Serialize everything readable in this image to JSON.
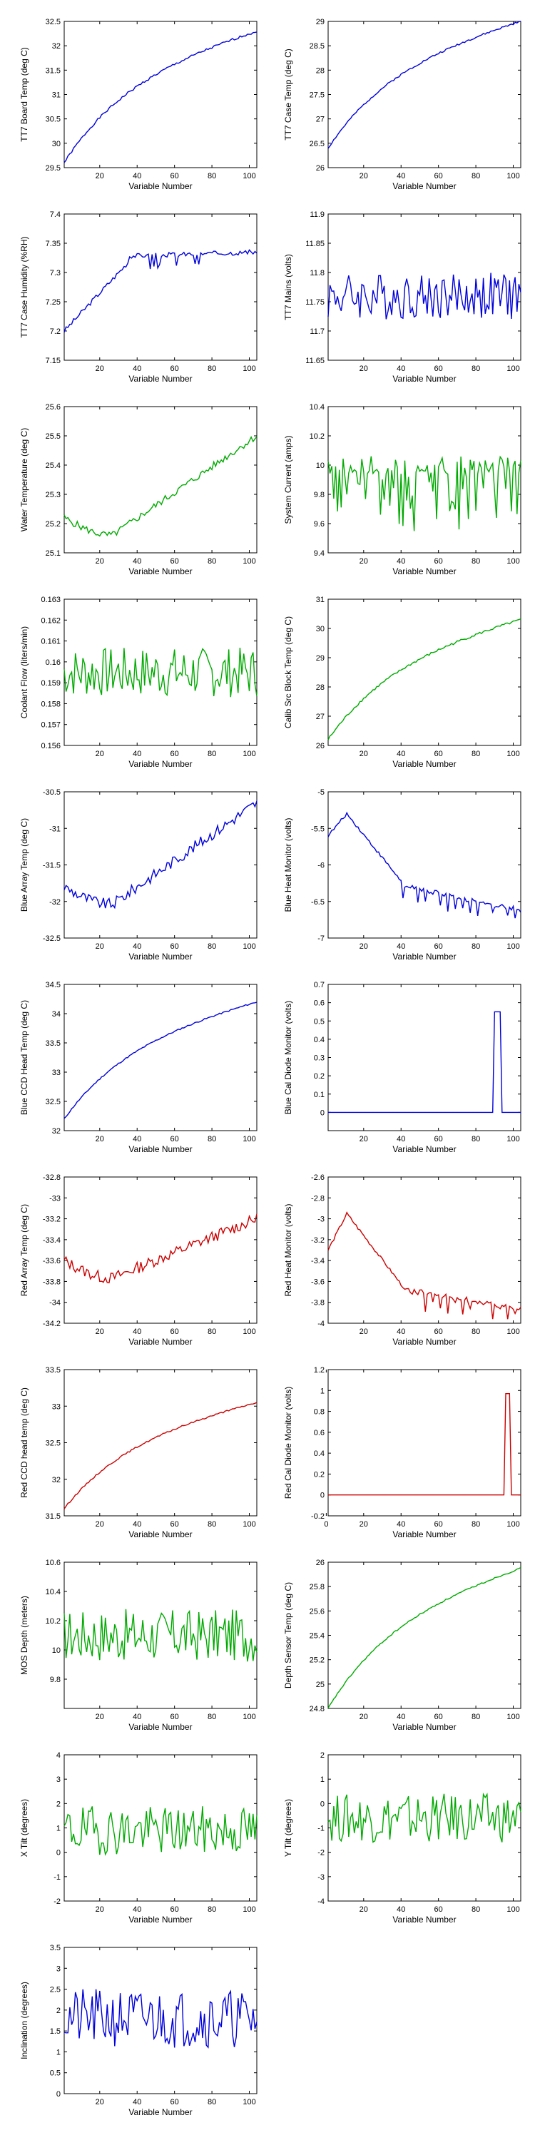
{
  "colors": {
    "blue": "#0000dd",
    "green": "#00aa00",
    "red": "#cc0000"
  },
  "chart_data": [
    {
      "type": "line",
      "id": "tt7-board-temp",
      "color": "#0000dd",
      "xlabel": "Variable Number",
      "ylabel": "TT7 Board Temp (deg C)",
      "xlim": [
        1,
        104
      ],
      "ylim": [
        29.5,
        32.5
      ],
      "xticks": [
        20,
        40,
        60,
        80,
        100
      ],
      "yticks": [
        29.5,
        30,
        30.5,
        31,
        31.5,
        32,
        32.5
      ],
      "shape": "rise",
      "params": [
        29.6,
        32.3,
        0.05,
        1
      ]
    },
    {
      "type": "line",
      "id": "tt7-case-temp",
      "color": "#0000dd",
      "xlabel": "Variable Number",
      "ylabel": "TT7 Case Temp (deg C)",
      "xlim": [
        1,
        104
      ],
      "ylim": [
        26,
        29
      ],
      "xticks": [
        20,
        40,
        60,
        80,
        100
      ],
      "yticks": [
        26,
        26.5,
        27,
        27.5,
        28,
        28.5,
        29
      ],
      "shape": "rise",
      "params": [
        26.4,
        29.0,
        0.04,
        2
      ]
    },
    {
      "type": "line",
      "id": "tt7-case-humidity",
      "color": "#0000dd",
      "xlabel": "Variable Number",
      "ylabel": "TT7 Case Humidity (%RH)",
      "xlim": [
        1,
        104
      ],
      "ylim": [
        7.15,
        7.4
      ],
      "xticks": [
        20,
        40,
        60,
        80,
        100
      ],
      "yticks": [
        7.15,
        7.2,
        7.25,
        7.3,
        7.35,
        7.4
      ],
      "shape": "step",
      "params": [
        7.2,
        7.33,
        0.01,
        3
      ]
    },
    {
      "type": "line",
      "id": "tt7-mains",
      "color": "#0000dd",
      "xlabel": "Variable Number",
      "ylabel": "TT7 Mains (volts)",
      "xlim": [
        1,
        104
      ],
      "ylim": [
        11.65,
        11.9
      ],
      "xticks": [
        20,
        40,
        60,
        80,
        100
      ],
      "yticks": [
        11.65,
        11.7,
        11.75,
        11.8,
        11.85,
        11.9
      ],
      "shape": "noise",
      "params": [
        11.76,
        0.04,
        4
      ]
    },
    {
      "type": "line",
      "id": "water-temperature",
      "color": "#00aa00",
      "xlabel": "Variable Number",
      "ylabel": "Water Temperature (deg C)",
      "xlim": [
        1,
        104
      ],
      "ylim": [
        25.1,
        25.6
      ],
      "xticks": [
        20,
        40,
        60,
        80,
        100
      ],
      "yticks": [
        25.1,
        25.2,
        25.3,
        25.4,
        25.5,
        25.6
      ],
      "shape": "dipRise",
      "params": [
        25.22,
        25.5,
        0.025,
        5
      ]
    },
    {
      "type": "line",
      "id": "system-current",
      "color": "#00aa00",
      "xlabel": "Variable Number",
      "ylabel": "System Current (amps)",
      "xlim": [
        1,
        104
      ],
      "ylim": [
        9.4,
        10.4
      ],
      "xticks": [
        20,
        40,
        60,
        80,
        100
      ],
      "yticks": [
        9.4,
        9.6,
        9.8,
        10,
        10.2,
        10.4
      ],
      "shape": "noiseDown",
      "params": [
        10.0,
        0.25,
        6
      ]
    },
    {
      "type": "line",
      "id": "coolant-flow",
      "color": "#00aa00",
      "xlabel": "Variable Number",
      "ylabel": "Coolant Flow (liters/min)",
      "xlim": [
        1,
        104
      ],
      "ylim": [
        0.156,
        0.163
      ],
      "xticks": [
        20,
        40,
        60,
        80,
        100
      ],
      "yticks": [
        0.156,
        0.157,
        0.158,
        0.159,
        0.16,
        0.161,
        0.162,
        0.163
      ],
      "shape": "noise",
      "params": [
        0.1595,
        0.0012,
        7
      ]
    },
    {
      "type": "line",
      "id": "calib-src-block-temp",
      "color": "#00aa00",
      "xlabel": "Variable Number",
      "ylabel": "Calib Src Block Temp (deg C)",
      "xlim": [
        1,
        104
      ],
      "ylim": [
        26,
        31
      ],
      "xticks": [
        20,
        40,
        60,
        80,
        100
      ],
      "yticks": [
        26,
        27,
        28,
        29,
        30,
        31
      ],
      "shape": "rise",
      "params": [
        26.2,
        30.3,
        0.05,
        8
      ]
    },
    {
      "type": "line",
      "id": "blue-array-temp",
      "color": "#0000dd",
      "xlabel": "Variable Number",
      "ylabel": "Blue Array Temp (deg C)",
      "xlim": [
        1,
        104
      ],
      "ylim": [
        -32.5,
        -30.5
      ],
      "xticks": [
        20,
        40,
        60,
        80,
        100
      ],
      "yticks": [
        -32.5,
        -32,
        -31.5,
        -31,
        -30.5
      ],
      "shape": "dipRise",
      "params": [
        -31.8,
        -30.65,
        0.04,
        9
      ]
    },
    {
      "type": "line",
      "id": "blue-heat-monitor",
      "color": "#0000dd",
      "xlabel": "Variable Number",
      "ylabel": "Blue Heat Monitor (volts)",
      "xlim": [
        1,
        104
      ],
      "ylim": [
        -7,
        -5
      ],
      "xticks": [
        20,
        40,
        60,
        80,
        100
      ],
      "yticks": [
        -7,
        -6.5,
        -6,
        -5.5,
        -5
      ],
      "shape": "heat",
      "params": [
        -5.6,
        -5.3,
        -6.25,
        -6.6,
        10
      ]
    },
    {
      "type": "line",
      "id": "blue-ccd-head-temp",
      "color": "#0000dd",
      "xlabel": "Variable Number",
      "ylabel": "Blue CCD Head Temp (deg C)",
      "xlim": [
        1,
        104
      ],
      "ylim": [
        32,
        34.5
      ],
      "xticks": [
        20,
        40,
        60,
        80,
        100
      ],
      "yticks": [
        32,
        32.5,
        33,
        33.5,
        34,
        34.5
      ],
      "shape": "rise",
      "params": [
        32.2,
        34.2,
        0.03,
        11
      ]
    },
    {
      "type": "line",
      "id": "blue-cal-diode-monitor",
      "color": "#0000dd",
      "xlabel": "Variable Number",
      "ylabel": "Blue Cal Diode Monitor (volts)",
      "xlim": [
        1,
        104
      ],
      "ylim": [
        -0.1,
        0.7
      ],
      "xticks": [
        20,
        40,
        60,
        80,
        100
      ],
      "yticks": [
        0,
        0.1,
        0.2,
        0.3,
        0.4,
        0.5,
        0.6,
        0.7
      ],
      "shape": "spike",
      "params": [
        0,
        0.55,
        90,
        93
      ]
    },
    {
      "type": "line",
      "id": "red-array-temp",
      "color": "#cc0000",
      "xlabel": "Variable Number",
      "ylabel": "Red Array Temp (deg C)",
      "xlim": [
        1,
        104
      ],
      "ylim": [
        -34.2,
        -32.8
      ],
      "xticks": [
        20,
        40,
        60,
        80,
        100
      ],
      "yticks": [
        -34.2,
        -34,
        -33.8,
        -33.6,
        -33.4,
        -33.2,
        -33,
        -32.8
      ],
      "shape": "dipRise",
      "params": [
        -33.6,
        -33.2,
        0.04,
        13
      ]
    },
    {
      "type": "line",
      "id": "red-heat-monitor",
      "color": "#cc0000",
      "xlabel": "Variable Number",
      "ylabel": "Red Heat Monitor (volts)",
      "xlim": [
        1,
        104
      ],
      "ylim": [
        -4,
        -2.6
      ],
      "xticks": [
        20,
        40,
        60,
        80,
        100
      ],
      "yticks": [
        -4,
        -3.8,
        -3.6,
        -3.4,
        -3.2,
        -3,
        -2.8,
        -2.6
      ],
      "shape": "heat",
      "params": [
        -3.3,
        -2.95,
        -3.65,
        -3.85,
        14
      ]
    },
    {
      "type": "line",
      "id": "red-ccd-head-temp",
      "color": "#cc0000",
      "xlabel": "Variable Number",
      "ylabel": "Red CCD head temp (deg C)",
      "xlim": [
        1,
        104
      ],
      "ylim": [
        31.5,
        33.5
      ],
      "xticks": [
        20,
        40,
        60,
        80,
        100
      ],
      "yticks": [
        31.5,
        32,
        32.5,
        33,
        33.5
      ],
      "shape": "rise",
      "params": [
        31.6,
        33.05,
        0.03,
        15
      ]
    },
    {
      "type": "line",
      "id": "red-cal-diode-monitor",
      "color": "#cc0000",
      "xlabel": "Variable Number",
      "ylabel": "Red Cal Diode Monitor (volts)",
      "xlim": [
        1,
        104
      ],
      "ylim": [
        -0.2,
        1.2
      ],
      "xticks": [
        0,
        20,
        40,
        60,
        80,
        100
      ],
      "yticks": [
        -0.2,
        0,
        0.2,
        0.4,
        0.6,
        0.8,
        1,
        1.2
      ],
      "shape": "spike",
      "params": [
        0,
        0.97,
        96,
        98
      ]
    },
    {
      "type": "line",
      "id": "mos-depth",
      "color": "#00aa00",
      "xlabel": "Variable Number",
      "ylabel": "MOS Depth (meters)",
      "xlim": [
        1,
        104
      ],
      "ylim": [
        9.6,
        10.6
      ],
      "xticks": [
        20,
        40,
        60,
        80,
        100
      ],
      "yticks": [
        9.8,
        10,
        10.2,
        10.4,
        10.6
      ],
      "shape": "noise",
      "params": [
        10.1,
        0.18,
        17
      ]
    },
    {
      "type": "line",
      "id": "depth-sensor-temp",
      "color": "#00aa00",
      "xlabel": "Variable Number",
      "ylabel": "Depth Sensor Temp (deg C)",
      "xlim": [
        1,
        104
      ],
      "ylim": [
        24.8,
        26
      ],
      "xticks": [
        20,
        40,
        60,
        80,
        100
      ],
      "yticks": [
        24.8,
        25,
        25.2,
        25.4,
        25.6,
        25.8,
        26
      ],
      "shape": "rise",
      "params": [
        24.8,
        25.95,
        0.03,
        18
      ]
    },
    {
      "type": "line",
      "id": "x-tilt",
      "color": "#00aa00",
      "xlabel": "Variable Number",
      "ylabel": "X Tilt (degrees)",
      "xlim": [
        1,
        104
      ],
      "ylim": [
        -2,
        4
      ],
      "xticks": [
        20,
        40,
        60,
        80,
        100
      ],
      "yticks": [
        -2,
        -1,
        0,
        1,
        2,
        3,
        4
      ],
      "shape": "noise",
      "params": [
        0.9,
        1.0,
        19
      ]
    },
    {
      "type": "line",
      "id": "y-tilt",
      "color": "#00aa00",
      "xlabel": "Variable Number",
      "ylabel": "Y Tilt (degrees)",
      "xlim": [
        1,
        104
      ],
      "ylim": [
        -4,
        2
      ],
      "xticks": [
        20,
        40,
        60,
        80,
        100
      ],
      "yticks": [
        -4,
        -3,
        -2,
        -1,
        0,
        1,
        2
      ],
      "shape": "noise",
      "params": [
        -0.6,
        1.0,
        20
      ]
    },
    {
      "type": "line",
      "id": "inclination",
      "color": "#0000dd",
      "xlabel": "Variable Number",
      "ylabel": "Inclination (degrees)",
      "xlim": [
        1,
        104
      ],
      "ylim": [
        0,
        3.5
      ],
      "xticks": [
        20,
        40,
        60,
        80,
        100
      ],
      "yticks": [
        0,
        0.5,
        1,
        1.5,
        2,
        2.5,
        3,
        3.5
      ],
      "shape": "noise",
      "params": [
        1.8,
        0.7,
        21
      ]
    }
  ]
}
